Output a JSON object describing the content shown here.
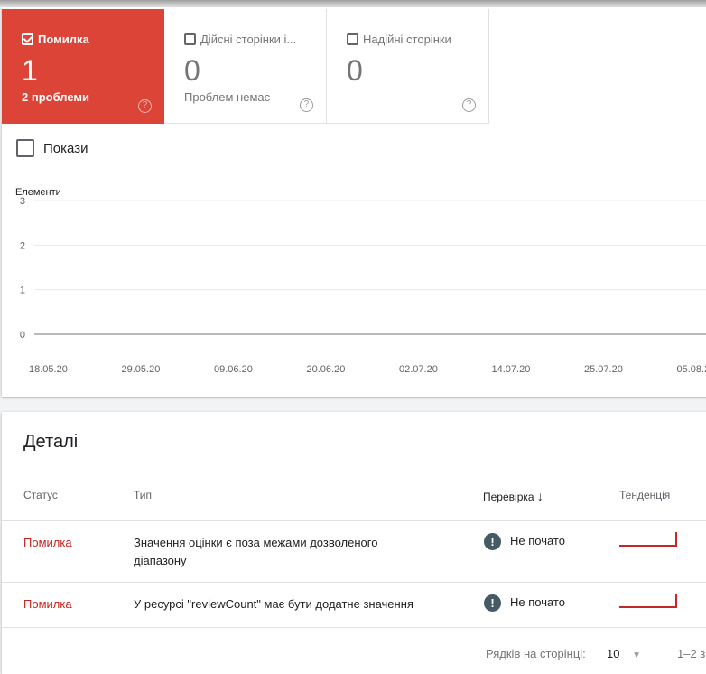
{
  "tiles": [
    {
      "label": "Помилка",
      "value": "1",
      "sub": "2 проблеми",
      "checked": true,
      "color": "#db4437"
    },
    {
      "label": "Дійсні сторінки і...",
      "value": "0",
      "sub": "Проблем немає",
      "checked": false
    },
    {
      "label": "Надійні сторінки",
      "value": "0",
      "sub": "",
      "checked": false
    }
  ],
  "show_label": "Покази",
  "chart_data": {
    "type": "line",
    "ylabel": "Елементи",
    "ylim": [
      0,
      3
    ],
    "yticks": [
      "0",
      "1",
      "2",
      "3"
    ],
    "xticks": [
      "18.05.20",
      "29.05.20",
      "09.06.20",
      "20.06.20",
      "02.07.20",
      "14.07.20",
      "25.07.20",
      "05.08.2"
    ],
    "series": [],
    "grid": true
  },
  "details": {
    "title": "Деталі",
    "headers": {
      "status": "Статус",
      "type": "Тип",
      "check": "Перевірка",
      "trend": "Тенденція"
    },
    "rows": [
      {
        "status": "Помилка",
        "type": "Значення оцінки є поза межами дозволеного діапазону",
        "check": "Не почато"
      },
      {
        "status": "Помилка",
        "type": "У ресурсі \"reviewCount\" має бути додатне значення",
        "check": "Не почато"
      }
    ],
    "footer": {
      "rows_label": "Рядків на сторінці:",
      "rows_value": "10",
      "range": "1–2 з"
    }
  }
}
